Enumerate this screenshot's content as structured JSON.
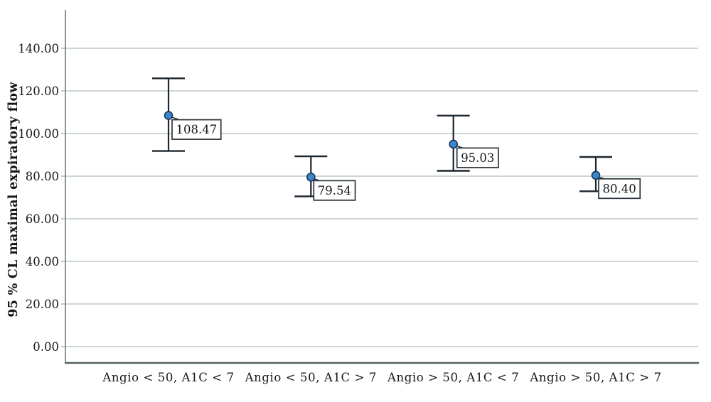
{
  "figure": {
    "background": "#ffffff"
  },
  "chart_data": {
    "type": "errorbar",
    "title": "",
    "xlabel": "",
    "ylabel": "95 % CL maximal expiratory flow",
    "categories": [
      "Angio < 50, A1C < 7",
      "Angio < 50, A1C > 7",
      "Angio > 50, A1C < 7",
      "Angio > 50, A1C > 7"
    ],
    "points": [
      {
        "category": "Angio < 50, A1C < 7",
        "mean": 108.47,
        "label": "108.47",
        "ci_low": 91.8,
        "ci_high": 125.9
      },
      {
        "category": "Angio < 50, A1C > 7",
        "mean": 79.54,
        "label": "79.54",
        "ci_low": 70.5,
        "ci_high": 89.3
      },
      {
        "category": "Angio > 50, A1C < 7",
        "mean": 95.03,
        "label": "95.03",
        "ci_low": 82.5,
        "ci_high": 108.4
      },
      {
        "category": "Angio > 50, A1C > 7",
        "mean": 80.4,
        "label": "80.40",
        "ci_low": 72.9,
        "ci_high": 89.0
      }
    ],
    "yticks": [
      {
        "value": 0,
        "label": "0.00"
      },
      {
        "value": 20,
        "label": "20.00"
      },
      {
        "value": 40,
        "label": "40.00"
      },
      {
        "value": 60,
        "label": "60.00"
      },
      {
        "value": 80,
        "label": "80.00"
      },
      {
        "value": 100,
        "label": "100.00"
      },
      {
        "value": 120,
        "label": "120.00"
      },
      {
        "value": 140,
        "label": "140.00"
      }
    ],
    "ylim": [
      -7.7,
      158
    ],
    "grid": true,
    "legend": "none",
    "colors": {
      "point_fill": "#3C86CC",
      "point_stroke": "#14365A",
      "error_bar": "#1D2730",
      "gridline": "#C7D1CC",
      "axis_left": "#7D8B85",
      "axis_bottom": "#55645E",
      "tick": "#AEBBB5",
      "label_box_border": "#2A333B",
      "label_box_fill": "#FFFFFF",
      "text": "#15191D"
    }
  }
}
